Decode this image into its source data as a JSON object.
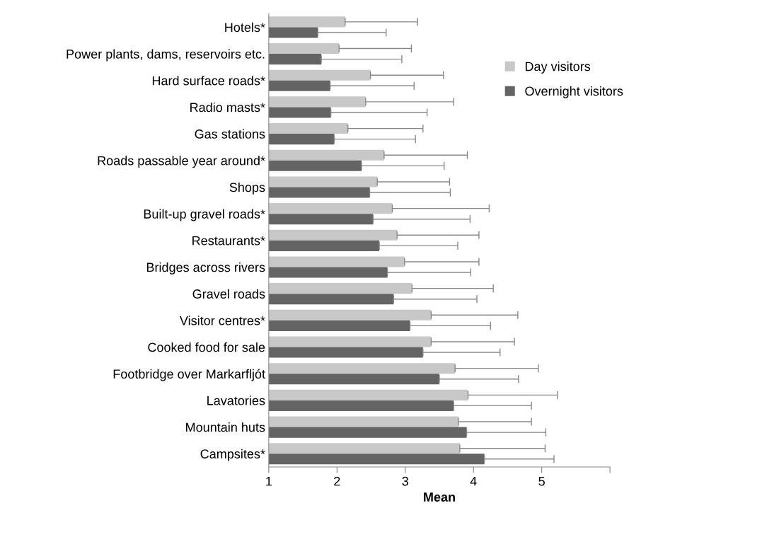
{
  "chart_data": {
    "type": "bar",
    "orientation": "horizontal",
    "xlabel": "Mean",
    "categories": [
      "Hotels*",
      "Power plants, dams, reservoirs etc.",
      "Hard surface roads*",
      "Radio masts*",
      "Gas stations",
      "Roads passable year around*",
      "Shops",
      "Built-up gravel roads*",
      "Restaurants*",
      "Bridges across rivers",
      "Gravel roads",
      "Visitor centres*",
      "Cooked food for sale",
      "Footbridge over Markarfljót",
      "Lavatories",
      "Mountain huts",
      "Campsites*"
    ],
    "series": [
      {
        "name": "Day visitors",
        "color": "#c8c8c8",
        "values": [
          2.12,
          2.03,
          2.49,
          2.42,
          2.16,
          2.69,
          2.59,
          2.81,
          2.88,
          2.99,
          3.1,
          3.38,
          3.38,
          3.73,
          3.92,
          3.78,
          3.8
        ],
        "errors": [
          [
            2.12,
            3.18
          ],
          [
            2.03,
            3.09
          ],
          [
            2.49,
            3.56
          ],
          [
            2.42,
            3.71
          ],
          [
            2.16,
            3.26
          ],
          [
            2.69,
            3.91
          ],
          [
            2.59,
            3.65
          ],
          [
            2.81,
            4.23
          ],
          [
            2.88,
            4.08
          ],
          [
            2.99,
            4.08
          ],
          [
            3.1,
            4.29
          ],
          [
            3.38,
            4.65
          ],
          [
            3.38,
            4.6
          ],
          [
            3.73,
            4.95
          ],
          [
            3.92,
            5.23
          ],
          [
            3.78,
            4.85
          ],
          [
            3.8,
            5.05
          ]
        ]
      },
      {
        "name": "Overnight visitors",
        "color": "#646464",
        "values": [
          1.72,
          1.77,
          1.9,
          1.91,
          1.96,
          2.36,
          2.48,
          2.53,
          2.62,
          2.74,
          2.83,
          3.07,
          3.26,
          3.5,
          3.71,
          3.9,
          4.16
        ],
        "errors": [
          [
            1.72,
            2.72
          ],
          [
            1.77,
            2.95
          ],
          [
            1.9,
            3.13
          ],
          [
            1.91,
            3.32
          ],
          [
            1.96,
            3.15
          ],
          [
            2.36,
            3.57
          ],
          [
            2.48,
            3.66
          ],
          [
            2.53,
            3.95
          ],
          [
            2.62,
            3.77
          ],
          [
            2.74,
            3.96
          ],
          [
            2.83,
            4.05
          ],
          [
            3.07,
            4.25
          ],
          [
            3.26,
            4.39
          ],
          [
            3.5,
            4.66
          ],
          [
            3.71,
            4.85
          ],
          [
            3.9,
            5.06
          ],
          [
            4.16,
            5.18
          ]
        ]
      }
    ],
    "xlim": [
      1,
      6
    ],
    "xticks": [
      1,
      2,
      3,
      4,
      5,
      {
        "value": 6,
        "label": null
      }
    ],
    "grid": false,
    "legend": "top right"
  }
}
